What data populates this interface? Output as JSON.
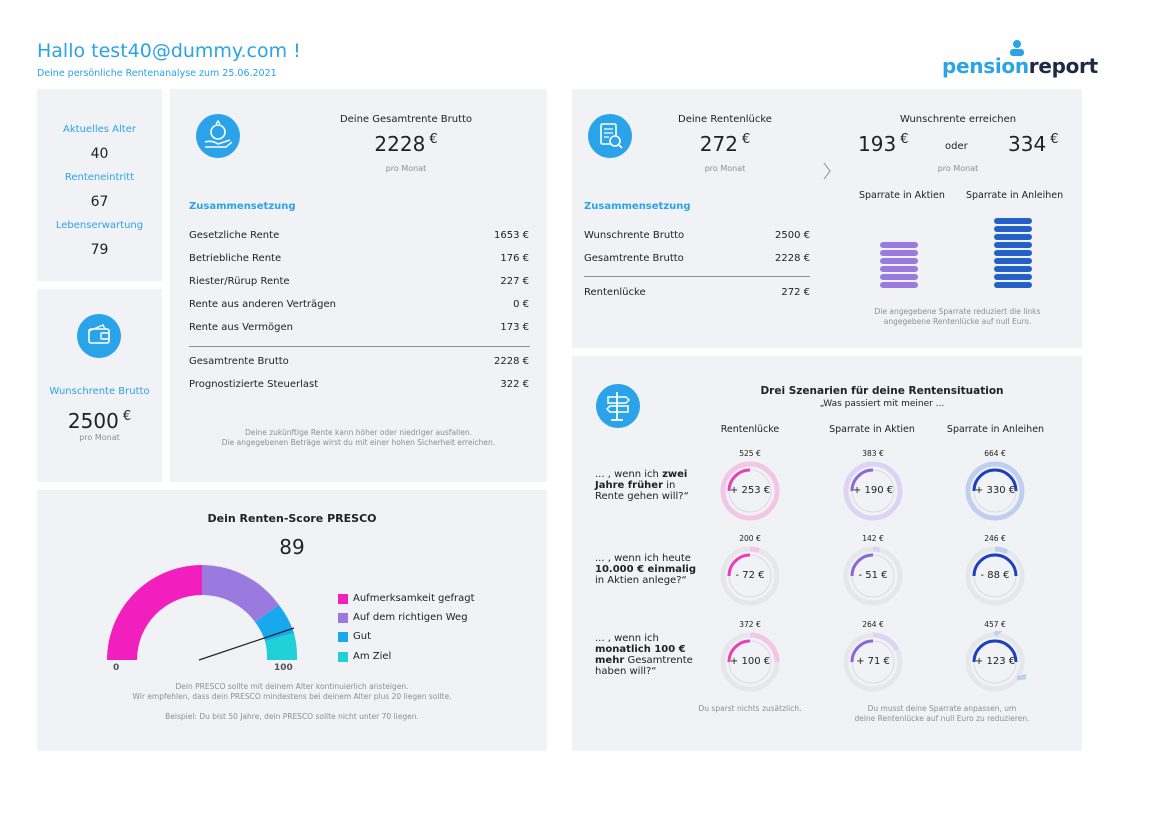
{
  "header": {
    "greeting": "Hallo test40@dummy.com !",
    "subtitle": "Deine persönliche Rentenanalyse zum 25.06.2021",
    "logo_part1": "pension",
    "logo_part2": "report"
  },
  "age_card": {
    "current_age_label": "Aktuelles Alter",
    "current_age": "40",
    "retirement_label": "Renteneintritt",
    "retirement_age": "67",
    "life_exp_label": "Lebenserwartung",
    "life_exp": "79"
  },
  "wish_card": {
    "label": "Wunschrente Brutto",
    "value": "2500",
    "currency": "€",
    "unit": "pro Monat"
  },
  "total_card": {
    "title": "Deine Gesamtrente Brutto",
    "value": "2228",
    "currency": "€",
    "unit": "pro Monat",
    "section": "Zusammensetzung",
    "rows": [
      {
        "label": "Gesetzliche Rente",
        "value": "1653 €"
      },
      {
        "label": "Betriebliche Rente",
        "value": "176 €"
      },
      {
        "label": "Riester/Rürup Rente",
        "value": "227 €"
      },
      {
        "label": "Rente aus anderen Verträgen",
        "value": "0 €"
      },
      {
        "label": "Rente aus Vermögen",
        "value": "173 €"
      }
    ],
    "total_rows": [
      {
        "label": "Gesamtrente Brutto",
        "value": "2228 €"
      },
      {
        "label": "Prognostizierte Steuerlast",
        "value": "322 €"
      }
    ],
    "note_line1": "Deine zukünftige Rente kann höher oder niedriger ausfallen.",
    "note_line2": "Die angegebenen Beträge wirst du mit einer hohen Sicherheit erreichen."
  },
  "gap_card": {
    "title": "Deine Rentenlücke",
    "value": "272",
    "currency": "€",
    "unit": "pro Monat",
    "section": "Zusammensetzung",
    "rows": [
      {
        "label": "Wunschrente Brutto",
        "value": "2500 €"
      },
      {
        "label": "Gesamtrente Brutto",
        "value": "2228 €"
      }
    ],
    "total_row": {
      "label": "Rentenlücke",
      "value": "272 €"
    },
    "wish_title": "Wunschrente erreichen",
    "value_stocks": "193",
    "or_label": "oder",
    "value_bonds": "334",
    "wish_unit": "pro Monat",
    "stocks_label": "Sparrate in Aktien",
    "bonds_label": "Sparrate in Anleihen",
    "note_line1": "Die angegebene Sparrate reduziert die links",
    "note_line2": "angegebene Rentenlücke auf null Euro."
  },
  "presco": {
    "title": "Dein Renten-Score PRESCO",
    "score": "89",
    "min_label": "0",
    "max_label": "100",
    "legend": [
      {
        "label": "Aufmerksamkeit gefragt",
        "color": "#f21fbf"
      },
      {
        "label": "Auf dem richtigen Weg",
        "color": "#9b7ae0"
      },
      {
        "label": "Gut",
        "color": "#18a8ee"
      },
      {
        "label": "Am Ziel",
        "color": "#1fd0d6"
      }
    ],
    "note_line1": "Dein PRESCO sollte mit deinem Alter kontinuierlich ansteigen.",
    "note_line2": "Wir empfehlen, dass dein PRESCO mindestens bei deinem Alter plus 20 liegen sollte.",
    "note_line3": "Beispiel: Du bist 50 Jahre, dein PRESCO sollte nicht unter 70 liegen."
  },
  "scenarios": {
    "title": "Drei Szenarien für deine Rentensituation",
    "subtitle": "„Was passiert mit meiner ...",
    "col_gap": "Rentenlücke",
    "col_stocks": "Sparrate in Aktien",
    "col_bonds": "Sparrate in Anleihen",
    "rows": [
      {
        "pre": "... , wenn ich ",
        "bold": "zwei Jahre früher",
        "post": " in Rente gehen will?“",
        "gap_top": "525 €",
        "gap": "+ 253 €",
        "stocks_top": "383 €",
        "stocks": "+ 190 €",
        "bonds_top": "664 €",
        "bonds": "+ 330 €"
      },
      {
        "pre": "... , wenn ich heute ",
        "bold": "10.000 € einmalig",
        "post": " in Aktien anlege?“",
        "gap_top": "200 €",
        "gap": "- 72 €",
        "stocks_top": "142 €",
        "stocks": "- 51 €",
        "bonds_top": "246 €",
        "bonds": "- 88 €"
      },
      {
        "pre": "... , wenn ich ",
        "bold": "monatlich 100 € mehr",
        "post": " Gesamtrente haben will?“",
        "gap_top": "372 €",
        "gap": "+ 100 €",
        "stocks_top": "264 €",
        "stocks": "+ 71 €",
        "bonds_top": "457 €",
        "bonds": "+ 123 €"
      }
    ],
    "foot_gap": "Du sparst nichts zusätzlich.",
    "foot_save_line1": "Du musst deine Sparrate anpassen, um",
    "foot_save_line2": "deine Rentenlücke auf null Euro zu reduzieren."
  }
}
